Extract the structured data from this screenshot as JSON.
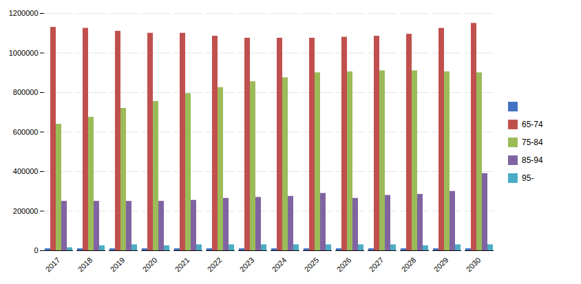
{
  "chart_data": {
    "type": "bar",
    "categories": [
      "2017",
      "2018",
      "2019",
      "2020",
      "2021",
      "2022",
      "2023",
      "2024",
      "2025",
      "2026",
      "2027",
      "2028",
      "2029",
      "2030"
    ],
    "series": [
      {
        "color": "#4472C4",
        "values": [
          10000,
          10000,
          10000,
          10000,
          10000,
          10000,
          10000,
          10000,
          10000,
          10000,
          10000,
          10000,
          10000,
          10000
        ]
      },
      {
        "name": "65-74",
        "color": "#C0504D",
        "values": [
          1130000,
          1125000,
          1110000,
          1100000,
          1100000,
          1085000,
          1075000,
          1075000,
          1075000,
          1080000,
          1085000,
          1095000,
          1125000,
          1150000
        ]
      },
      {
        "name": "75-84",
        "color": "#9BBB59",
        "values": [
          640000,
          675000,
          720000,
          755000,
          795000,
          825000,
          855000,
          875000,
          900000,
          905000,
          910000,
          910000,
          905000,
          900000
        ]
      },
      {
        "name": "85-94",
        "color": "#8064A2",
        "values": [
          250000,
          250000,
          250000,
          250000,
          255000,
          265000,
          270000,
          275000,
          290000,
          265000,
          280000,
          285000,
          300000,
          390000
        ]
      },
      {
        "name": "95-",
        "color": "#4BACC6",
        "values": [
          15000,
          25000,
          30000,
          25000,
          30000,
          30000,
          30000,
          30000,
          30000,
          30000,
          30000,
          25000,
          30000,
          30000
        ]
      }
    ],
    "ylim": [
      0,
      1200000
    ],
    "yticks": [
      0,
      200000,
      400000,
      600000,
      800000,
      1000000,
      1200000
    ],
    "grid": true,
    "legend": "right"
  }
}
